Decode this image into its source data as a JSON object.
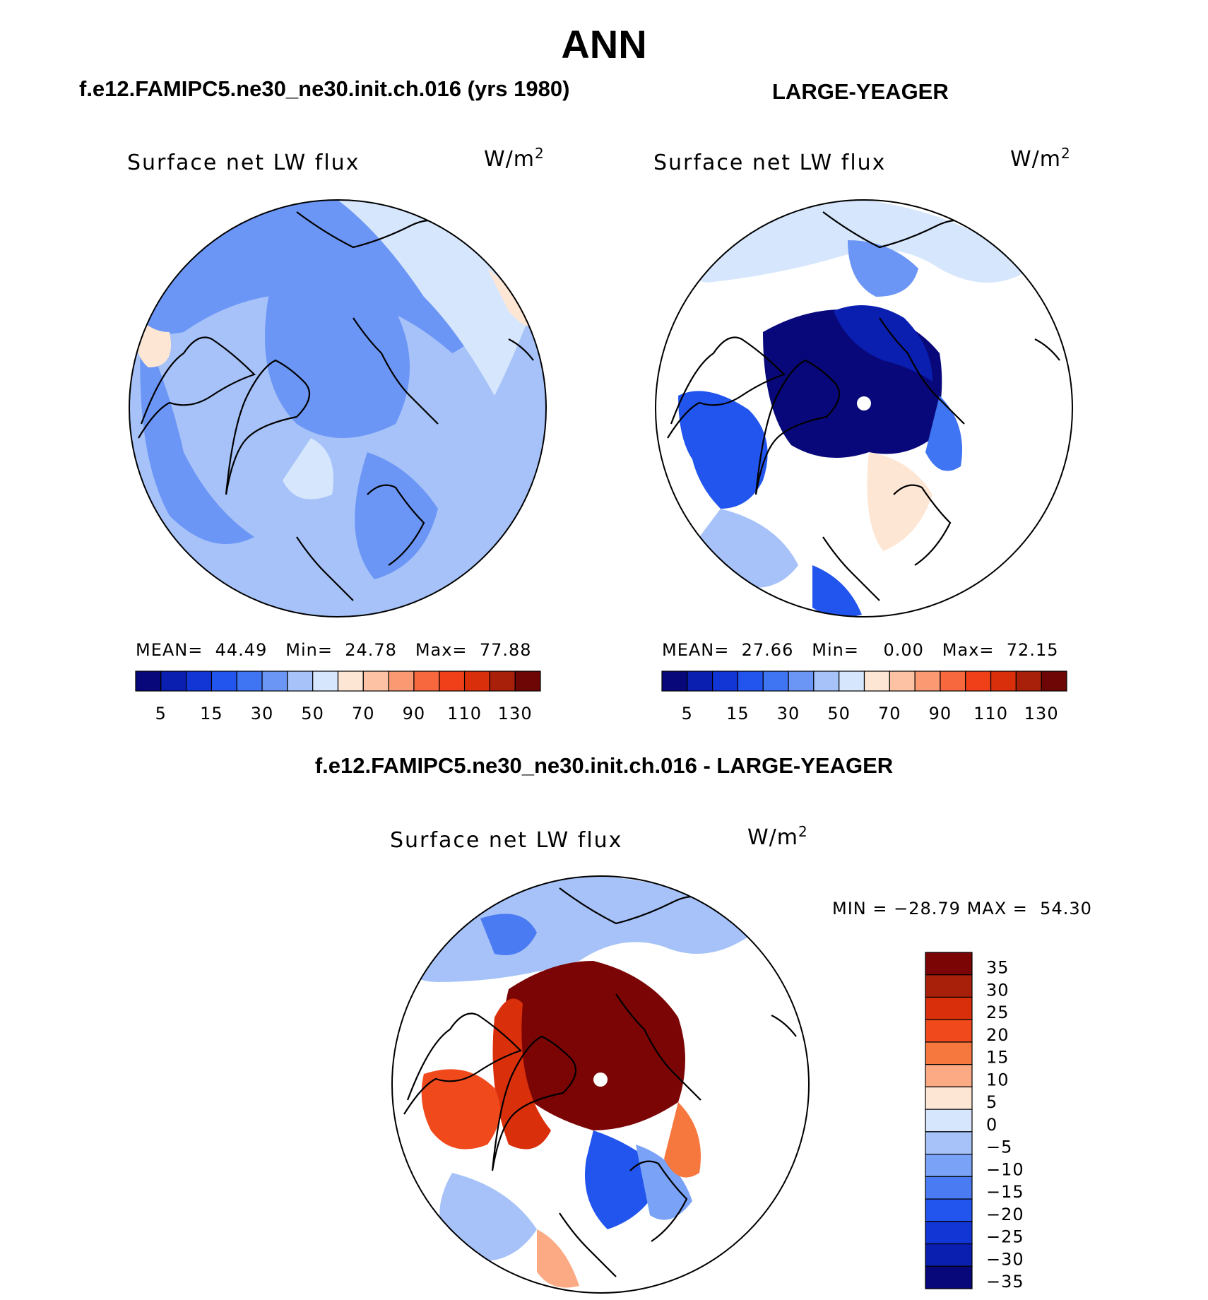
{
  "title": "ANN",
  "panels": {
    "left": {
      "case": "f.e12.FAMIPC5.ne30_ne30.init.ch.016 (yrs 1980)",
      "variable": "Surface net LW flux",
      "units_base": "W/m",
      "units_exp": "2",
      "mean_label": "MEAN=",
      "mean": "44.49",
      "min_label": "Min=",
      "min": "24.78",
      "max_label": "Max=",
      "max": "77.88"
    },
    "right": {
      "case": "LARGE-YEAGER",
      "variable": "Surface net LW flux",
      "units_base": "W/m",
      "units_exp": "2",
      "mean_label": "MEAN=",
      "mean": "27.66",
      "min_label": "Min=",
      "min": "0.00",
      "max_label": "Max=",
      "max": "72.15"
    },
    "diff": {
      "case": "f.e12.FAMIPC5.ne30_ne30.init.ch.016 - LARGE-YEAGER",
      "variable": "Surface net LW flux",
      "units_base": "W/m",
      "units_exp": "2",
      "min_label": "MIN =",
      "min": "−28.79",
      "max_label": "MAX =",
      "max": "54.30"
    }
  },
  "colorbars": {
    "abs_labels": [
      "5",
      "15",
      "30",
      "50",
      "70",
      "90",
      "110",
      "130"
    ],
    "abs_colors": [
      "#08087a",
      "#0a1fb0",
      "#1235d6",
      "#2255ee",
      "#3f74f2",
      "#6b96f5",
      "#a6c2f9",
      "#d6e6fc",
      "#fde6d4",
      "#fcc2a3",
      "#fb9a72",
      "#f7683f",
      "#ef4019",
      "#d92f0b",
      "#a8200a",
      "#6e0606"
    ],
    "diff_labels": [
      "35",
      "30",
      "25",
      "20",
      "15",
      "10",
      "5",
      "0",
      "−5",
      "−10",
      "−15",
      "−20",
      "−25",
      "−30",
      "−35"
    ],
    "diff_colors": [
      "#7b0505",
      "#a8200a",
      "#d92f0b",
      "#f04a1c",
      "#f7783f",
      "#fbaa84",
      "#fde6d4",
      "#d6e6fc",
      "#a6c2f9",
      "#7aa2f6",
      "#4a7bf2",
      "#2255ee",
      "#1235d6",
      "#0a1fb0",
      "#08087a"
    ]
  },
  "chart_data": [
    {
      "type": "heatmap",
      "projection": "north-polar-stereographic",
      "title": "f.e12.FAMIPC5.ne30_ne30.init.ch.016 (yrs 1980)",
      "variable": "Surface net LW flux",
      "units": "W/m2",
      "stats": {
        "mean": 44.49,
        "min": 24.78,
        "max": 77.88
      },
      "contour_levels": [
        5,
        10,
        15,
        20,
        30,
        40,
        50,
        60,
        70,
        80,
        90,
        100,
        110,
        120,
        130
      ],
      "colorbar_ticks": [
        5,
        15,
        30,
        50,
        70,
        90,
        110,
        130
      ]
    },
    {
      "type": "heatmap",
      "projection": "north-polar-stereographic",
      "title": "LARGE-YEAGER",
      "variable": "Surface net LW flux",
      "units": "W/m2",
      "stats": {
        "mean": 27.66,
        "min": 0.0,
        "max": 72.15
      },
      "contour_levels": [
        5,
        10,
        15,
        20,
        30,
        40,
        50,
        60,
        70,
        80,
        90,
        100,
        110,
        120,
        130
      ],
      "colorbar_ticks": [
        5,
        15,
        30,
        50,
        70,
        90,
        110,
        130
      ]
    },
    {
      "type": "heatmap",
      "projection": "north-polar-stereographic",
      "title": "f.e12.FAMIPC5.ne30_ne30.init.ch.016 - LARGE-YEAGER",
      "variable": "Surface net LW flux",
      "units": "W/m2",
      "stats": {
        "min": -28.79,
        "max": 54.3
      },
      "contour_levels": [
        -35,
        -30,
        -25,
        -20,
        -15,
        -10,
        -5,
        0,
        5,
        10,
        15,
        20,
        25,
        30,
        35
      ],
      "colorbar_ticks": [
        35,
        30,
        25,
        20,
        15,
        10,
        5,
        0,
        -5,
        -10,
        -15,
        -20,
        -25,
        -30,
        -35
      ]
    }
  ]
}
